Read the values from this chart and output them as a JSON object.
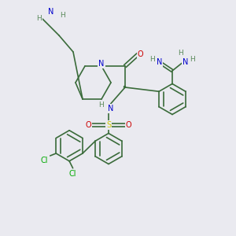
{
  "bg_color": "#eaeaf0",
  "bond_color": "#3a6b3a",
  "atom_colors": {
    "N": "#0000cc",
    "O": "#cc0000",
    "S": "#cccc00",
    "Cl": "#00aa00",
    "C": "#3a6b3a",
    "H": "#5a8a5a"
  },
  "line_width": 1.2,
  "font_size": 7
}
